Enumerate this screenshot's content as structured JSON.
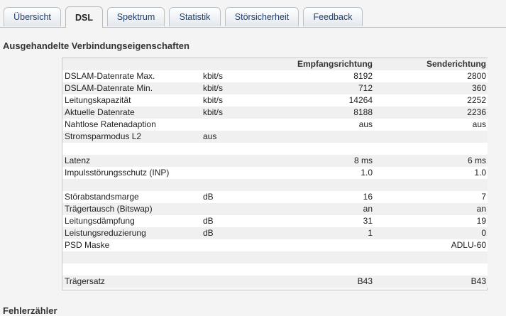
{
  "tabs": [
    {
      "label": "Übersicht",
      "active": false
    },
    {
      "label": "DSL",
      "active": true
    },
    {
      "label": "Spektrum",
      "active": false
    },
    {
      "label": "Statistik",
      "active": false
    },
    {
      "label": "Störsicherheit",
      "active": false
    },
    {
      "label": "Feedback",
      "active": false
    }
  ],
  "section1": {
    "title": "Ausgehandelte Verbindungseigenschaften",
    "col_rx": "Empfangsrichtung",
    "col_tx": "Senderichtung",
    "rows": [
      {
        "label": "DSLAM-Datenrate Max.",
        "unit": "kbit/s",
        "rx": "8192",
        "tx": "2800"
      },
      {
        "label": "DSLAM-Datenrate Min.",
        "unit": "kbit/s",
        "rx": "712",
        "tx": "360"
      },
      {
        "label": "Leitungskapazität",
        "unit": "kbit/s",
        "rx": "14264",
        "tx": "2252"
      },
      {
        "label": "Aktuelle Datenrate",
        "unit": "kbit/s",
        "rx": "8188",
        "tx": "2236"
      },
      {
        "label": "Nahtlose Ratenadaption",
        "unit": "",
        "rx": "aus",
        "tx": "aus"
      },
      {
        "label": "Stromsparmodus L2",
        "unit": "aus",
        "rx": "",
        "tx": ""
      },
      {
        "label": "",
        "unit": "",
        "rx": "",
        "tx": ""
      },
      {
        "label": "Latenz",
        "unit": "",
        "rx": "8 ms",
        "tx": "6 ms"
      },
      {
        "label": "Impulsstörungsschutz (INP)",
        "unit": "",
        "rx": "1.0",
        "tx": "1.0"
      },
      {
        "label": "",
        "unit": "",
        "rx": "",
        "tx": ""
      },
      {
        "label": "Störabstandsmarge",
        "unit": "dB",
        "rx": "16",
        "tx": "7"
      },
      {
        "label": "Trägertausch (Bitswap)",
        "unit": "",
        "rx": "an",
        "tx": "an"
      },
      {
        "label": "Leitungsdämpfung",
        "unit": "dB",
        "rx": "31",
        "tx": "19"
      },
      {
        "label": "Leistungsreduzierung",
        "unit": "dB",
        "rx": "1",
        "tx": "0"
      },
      {
        "label": "PSD Maske",
        "unit": "",
        "rx": "",
        "tx": "ADLU-60"
      },
      {
        "label": "",
        "unit": "",
        "rx": "",
        "tx": ""
      },
      {
        "label": "",
        "unit": "",
        "rx": "",
        "tx": ""
      },
      {
        "label": "Trägersatz",
        "unit": "",
        "rx": "B43",
        "tx": "B43"
      }
    ]
  },
  "section2": {
    "title": "Fehlerzähler"
  }
}
